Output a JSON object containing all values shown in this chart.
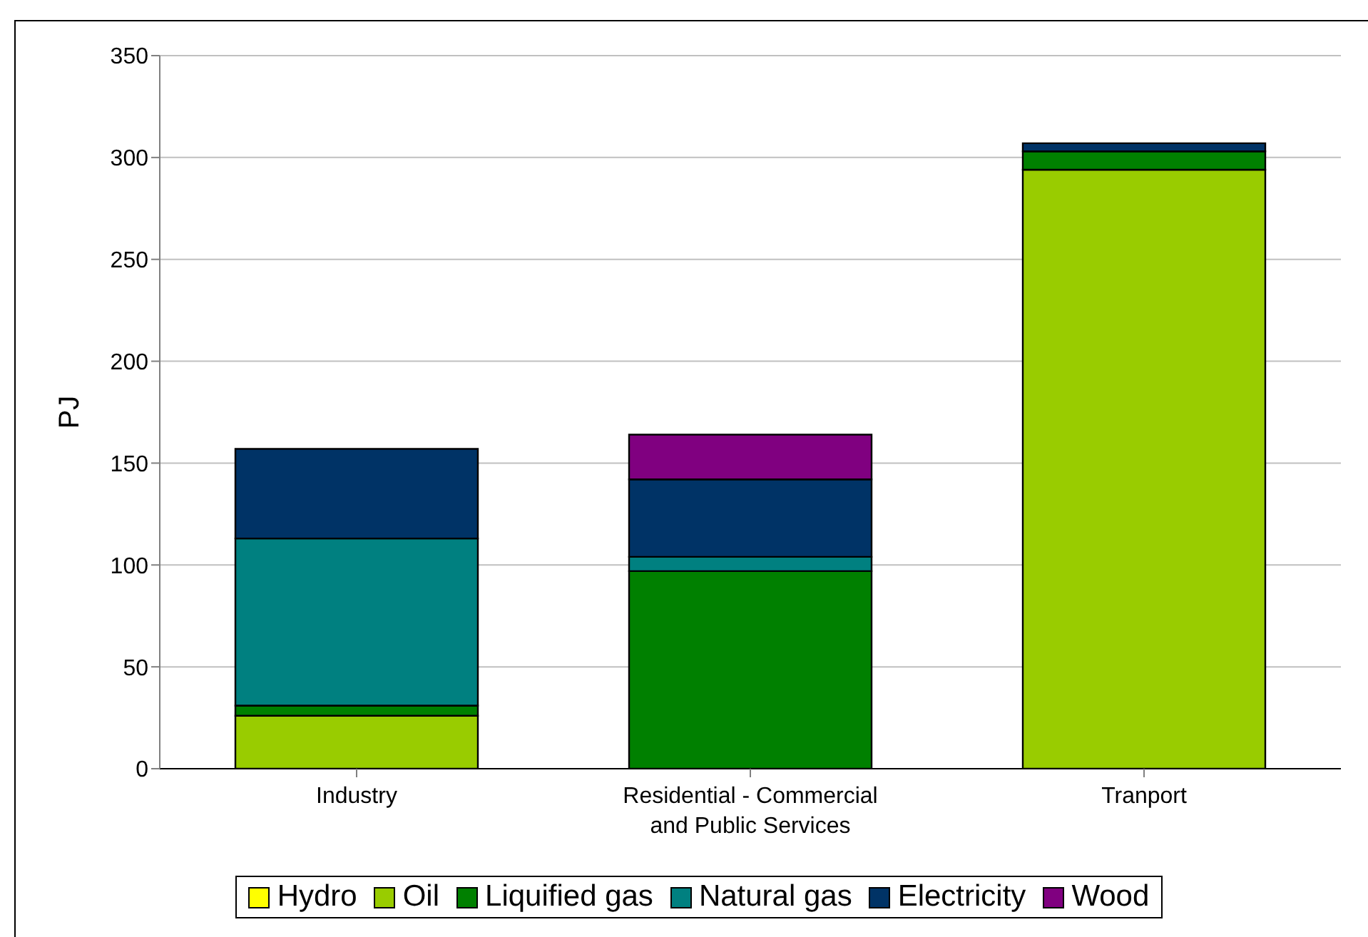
{
  "chart_data": {
    "type": "bar",
    "stacked": true,
    "ylabel": "PJ",
    "categories": [
      "Industry",
      "Residential - Commercial and Public Services",
      "Tranport"
    ],
    "series": [
      {
        "name": "Hydro",
        "color": "#ffff00",
        "values": [
          0,
          0,
          0
        ]
      },
      {
        "name": "Oil",
        "color": "#99cc00",
        "values": [
          26,
          0,
          294
        ]
      },
      {
        "name": "Liquified gas",
        "color": "#008000",
        "values": [
          5,
          97,
          9
        ]
      },
      {
        "name": "Natural gas",
        "color": "#008080",
        "values": [
          82,
          7,
          0
        ]
      },
      {
        "name": "Electricity",
        "color": "#003366",
        "values": [
          44,
          38,
          4
        ]
      },
      {
        "name": "Wood",
        "color": "#800080",
        "values": [
          0,
          22,
          0
        ]
      }
    ],
    "ylim": [
      0,
      350
    ],
    "yticks": [
      0,
      50,
      100,
      150,
      200,
      250,
      300,
      350
    ],
    "grid": "y",
    "legend": "bottom"
  }
}
